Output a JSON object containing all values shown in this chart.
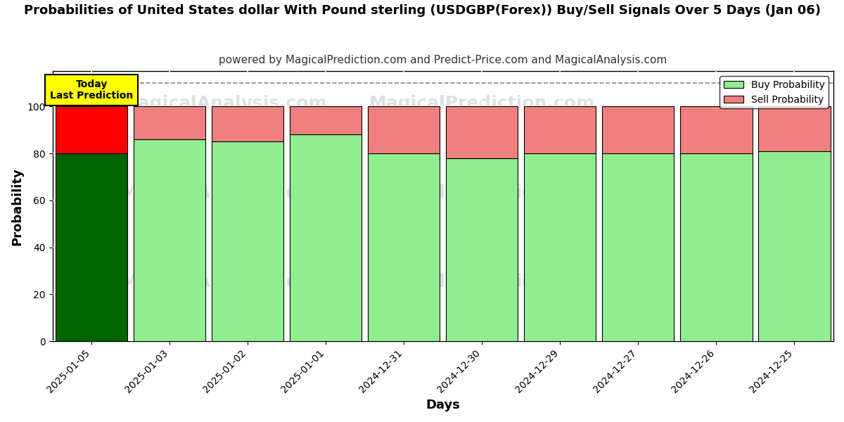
{
  "title": "Probabilities of United States dollar With Pound sterling (USDGBP(Forex)) Buy/Sell Signals Over 5 Days (Jan 06)",
  "subtitle": "powered by MagicalPrediction.com and Predict-Price.com and MagicalAnalysis.com",
  "xlabel": "Days",
  "ylabel": "Probability",
  "categories": [
    "2025-01-05",
    "2025-01-03",
    "2025-01-02",
    "2025-01-01",
    "2024-12-31",
    "2024-12-30",
    "2024-12-29",
    "2024-12-27",
    "2024-12-26",
    "2024-12-25"
  ],
  "buy_values": [
    80,
    86,
    85,
    88,
    80,
    78,
    80,
    80,
    80,
    81
  ],
  "sell_values": [
    20,
    14,
    15,
    12,
    20,
    22,
    20,
    20,
    20,
    19
  ],
  "buy_color_today": "#006400",
  "sell_color_today": "#FF0000",
  "buy_color_normal": "#90EE90",
  "sell_color_normal": "#F08080",
  "bar_edge_color": "#000000",
  "today_annotation_bg": "#FFFF00",
  "today_annotation_text": "Today\nLast Prediction",
  "ylim": [
    0,
    115
  ],
  "yticks": [
    0,
    20,
    40,
    60,
    80,
    100
  ],
  "grid_color": "#FFFFFF",
  "background_color": "#FFFFFF",
  "plot_bg_color": "#FFFFFF",
  "title_fontsize": 13,
  "subtitle_fontsize": 11,
  "axis_label_fontsize": 13,
  "tick_fontsize": 10,
  "watermark_color": "#D3D3D3",
  "dashed_line_y": 110
}
